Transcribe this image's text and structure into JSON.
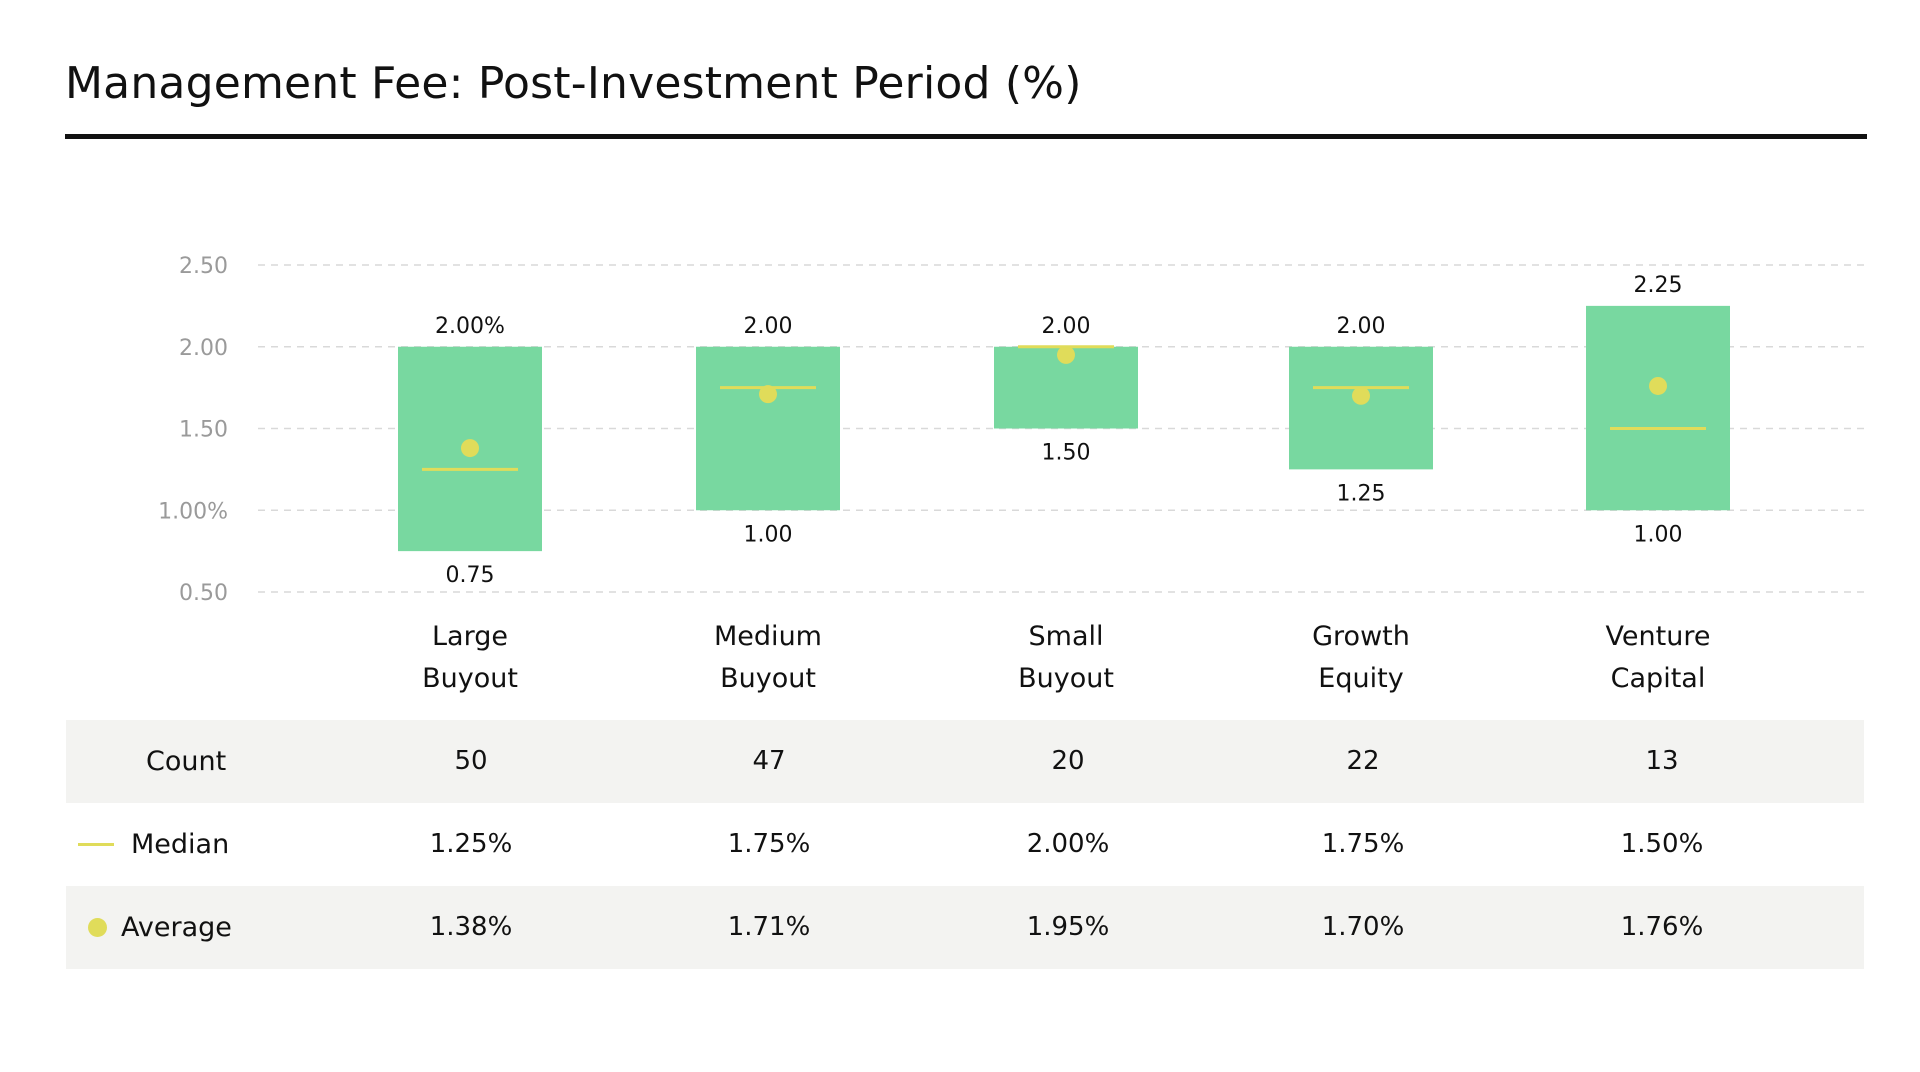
{
  "title": "Management Fee: Post-Investment Period (%)",
  "colors": {
    "box": "#78d8a0",
    "marker": "#e0dc5a",
    "grid": "#d9d9d9",
    "tick": "#9a9a9a",
    "row_shade": "#f3f3f1"
  },
  "chart_data": {
    "type": "box",
    "title": "Management Fee: Post-Investment Period (%)",
    "categories": [
      {
        "line1": "Large",
        "line2": "Buyout"
      },
      {
        "line1": "Medium",
        "line2": "Buyout"
      },
      {
        "line1": "Small",
        "line2": "Buyout"
      },
      {
        "line1": "Growth",
        "line2": "Equity"
      },
      {
        "line1": "Venture",
        "line2": "Capital"
      }
    ],
    "ylim": [
      0.5,
      2.5
    ],
    "yticks": [
      {
        "value": 2.5,
        "label": "2.50"
      },
      {
        "value": 2.0,
        "label": "2.00"
      },
      {
        "value": 1.5,
        "label": "1.50"
      },
      {
        "value": 1.0,
        "label": "1.00%"
      },
      {
        "value": 0.5,
        "label": "0.50"
      }
    ],
    "grid": true,
    "boxes": [
      {
        "high": 2.0,
        "low": 0.75,
        "median": 1.25,
        "average": 1.38,
        "high_label": "2.00%",
        "low_label": "0.75"
      },
      {
        "high": 2.0,
        "low": 1.0,
        "median": 1.75,
        "average": 1.71,
        "high_label": "2.00",
        "low_label": "1.00"
      },
      {
        "high": 2.0,
        "low": 1.5,
        "median": 2.0,
        "average": 1.95,
        "high_label": "2.00",
        "low_label": "1.50"
      },
      {
        "high": 2.0,
        "low": 1.25,
        "median": 1.75,
        "average": 1.7,
        "high_label": "2.00",
        "low_label": "1.25"
      },
      {
        "high": 2.25,
        "low": 1.0,
        "median": 1.5,
        "average": 1.76,
        "high_label": "2.25",
        "low_label": "1.00"
      }
    ]
  },
  "stats": {
    "count_label": "Count",
    "median_label": "Median",
    "average_label": "Average",
    "counts": [
      "50",
      "47",
      "20",
      "22",
      "13"
    ],
    "medians": [
      "1.25%",
      "1.75%",
      "2.00%",
      "1.75%",
      "1.50%"
    ],
    "averages": [
      "1.38%",
      "1.71%",
      "1.95%",
      "1.70%",
      "1.76%"
    ]
  }
}
